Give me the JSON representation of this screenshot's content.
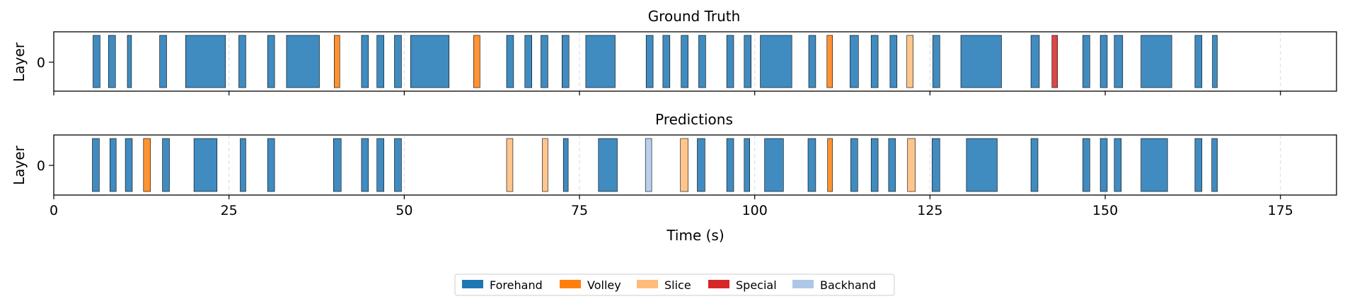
{
  "chart_data": [
    {
      "type": "timeline",
      "title": "Ground Truth",
      "xlabel": "",
      "ylabel": "Layer",
      "ytick": "0",
      "xlim": [
        0,
        183
      ],
      "xticks": [
        0,
        25,
        50,
        75,
        100,
        125,
        150,
        175
      ],
      "show_xtick_labels": false,
      "segments": [
        {
          "start": 5.6,
          "end": 6.6,
          "label": "Forehand"
        },
        {
          "start": 7.8,
          "end": 8.8,
          "label": "Forehand"
        },
        {
          "start": 10.5,
          "end": 11.1,
          "label": "Forehand"
        },
        {
          "start": 15.1,
          "end": 16.1,
          "label": "Forehand"
        },
        {
          "start": 18.8,
          "end": 24.5,
          "label": "Forehand"
        },
        {
          "start": 26.4,
          "end": 27.4,
          "label": "Forehand"
        },
        {
          "start": 30.5,
          "end": 31.5,
          "label": "Forehand"
        },
        {
          "start": 33.2,
          "end": 37.9,
          "label": "Forehand"
        },
        {
          "start": 40.0,
          "end": 40.8,
          "label": "Volley"
        },
        {
          "start": 43.9,
          "end": 44.9,
          "label": "Forehand"
        },
        {
          "start": 46.1,
          "end": 47.1,
          "label": "Forehand"
        },
        {
          "start": 48.6,
          "end": 49.6,
          "label": "Forehand"
        },
        {
          "start": 50.9,
          "end": 56.4,
          "label": "Forehand"
        },
        {
          "start": 59.9,
          "end": 60.8,
          "label": "Volley"
        },
        {
          "start": 64.6,
          "end": 65.6,
          "label": "Forehand"
        },
        {
          "start": 67.2,
          "end": 68.2,
          "label": "Forehand"
        },
        {
          "start": 69.5,
          "end": 70.5,
          "label": "Forehand"
        },
        {
          "start": 72.5,
          "end": 73.5,
          "label": "Forehand"
        },
        {
          "start": 75.9,
          "end": 80.1,
          "label": "Forehand"
        },
        {
          "start": 84.5,
          "end": 85.5,
          "label": "Forehand"
        },
        {
          "start": 86.9,
          "end": 87.9,
          "label": "Forehand"
        },
        {
          "start": 89.5,
          "end": 90.5,
          "label": "Forehand"
        },
        {
          "start": 92.0,
          "end": 93.0,
          "label": "Forehand"
        },
        {
          "start": 96.0,
          "end": 97.0,
          "label": "Forehand"
        },
        {
          "start": 98.5,
          "end": 99.5,
          "label": "Forehand"
        },
        {
          "start": 100.8,
          "end": 105.3,
          "label": "Forehand"
        },
        {
          "start": 107.7,
          "end": 108.7,
          "label": "Forehand"
        },
        {
          "start": 110.3,
          "end": 111.1,
          "label": "Volley"
        },
        {
          "start": 113.6,
          "end": 114.8,
          "label": "Forehand"
        },
        {
          "start": 116.6,
          "end": 117.6,
          "label": "Forehand"
        },
        {
          "start": 119.3,
          "end": 120.3,
          "label": "Forehand"
        },
        {
          "start": 121.7,
          "end": 122.6,
          "label": "Slice"
        },
        {
          "start": 125.4,
          "end": 126.4,
          "label": "Forehand"
        },
        {
          "start": 129.4,
          "end": 135.2,
          "label": "Forehand"
        },
        {
          "start": 139.4,
          "end": 140.6,
          "label": "Forehand"
        },
        {
          "start": 142.4,
          "end": 143.2,
          "label": "Special"
        },
        {
          "start": 146.8,
          "end": 147.8,
          "label": "Forehand"
        },
        {
          "start": 149.3,
          "end": 150.3,
          "label": "Forehand"
        },
        {
          "start": 151.3,
          "end": 152.5,
          "label": "Forehand"
        },
        {
          "start": 155.1,
          "end": 159.5,
          "label": "Forehand"
        },
        {
          "start": 162.8,
          "end": 163.8,
          "label": "Forehand"
        },
        {
          "start": 165.3,
          "end": 166.0,
          "label": "Forehand"
        }
      ]
    },
    {
      "type": "timeline",
      "title": "Predictions",
      "xlabel": "Time (s)",
      "ylabel": "Layer",
      "ytick": "0",
      "xlim": [
        0,
        183
      ],
      "xticks": [
        0,
        25,
        50,
        75,
        100,
        125,
        150,
        175
      ],
      "show_xtick_labels": true,
      "segments": [
        {
          "start": 5.5,
          "end": 6.5,
          "label": "Forehand"
        },
        {
          "start": 8.0,
          "end": 8.9,
          "label": "Forehand"
        },
        {
          "start": 10.2,
          "end": 11.2,
          "label": "Forehand"
        },
        {
          "start": 12.8,
          "end": 13.8,
          "label": "Volley"
        },
        {
          "start": 15.5,
          "end": 16.5,
          "label": "Forehand"
        },
        {
          "start": 20.0,
          "end": 23.3,
          "label": "Forehand"
        },
        {
          "start": 26.6,
          "end": 27.4,
          "label": "Forehand"
        },
        {
          "start": 30.5,
          "end": 31.5,
          "label": "Forehand"
        },
        {
          "start": 39.9,
          "end": 41.0,
          "label": "Forehand"
        },
        {
          "start": 43.9,
          "end": 44.9,
          "label": "Forehand"
        },
        {
          "start": 46.1,
          "end": 47.1,
          "label": "Forehand"
        },
        {
          "start": 48.6,
          "end": 49.6,
          "label": "Forehand"
        },
        {
          "start": 64.6,
          "end": 65.5,
          "label": "Slice"
        },
        {
          "start": 69.7,
          "end": 70.5,
          "label": "Slice"
        },
        {
          "start": 72.7,
          "end": 73.4,
          "label": "Forehand"
        },
        {
          "start": 77.7,
          "end": 80.4,
          "label": "Forehand"
        },
        {
          "start": 84.4,
          "end": 85.3,
          "label": "Backhand"
        },
        {
          "start": 89.4,
          "end": 90.5,
          "label": "Slice"
        },
        {
          "start": 91.8,
          "end": 92.9,
          "label": "Forehand"
        },
        {
          "start": 96.0,
          "end": 97.0,
          "label": "Forehand"
        },
        {
          "start": 98.5,
          "end": 99.3,
          "label": "Forehand"
        },
        {
          "start": 101.4,
          "end": 104.1,
          "label": "Forehand"
        },
        {
          "start": 107.6,
          "end": 108.7,
          "label": "Forehand"
        },
        {
          "start": 110.4,
          "end": 111.1,
          "label": "Volley"
        },
        {
          "start": 113.7,
          "end": 114.7,
          "label": "Forehand"
        },
        {
          "start": 116.6,
          "end": 117.6,
          "label": "Forehand"
        },
        {
          "start": 119.1,
          "end": 120.1,
          "label": "Forehand"
        },
        {
          "start": 121.8,
          "end": 122.9,
          "label": "Slice"
        },
        {
          "start": 125.3,
          "end": 126.4,
          "label": "Forehand"
        },
        {
          "start": 130.2,
          "end": 134.6,
          "label": "Forehand"
        },
        {
          "start": 139.4,
          "end": 140.4,
          "label": "Forehand"
        },
        {
          "start": 146.8,
          "end": 147.8,
          "label": "Forehand"
        },
        {
          "start": 149.3,
          "end": 150.3,
          "label": "Forehand"
        },
        {
          "start": 151.3,
          "end": 152.3,
          "label": "Forehand"
        },
        {
          "start": 155.1,
          "end": 158.9,
          "label": "Forehand"
        },
        {
          "start": 162.8,
          "end": 163.8,
          "label": "Forehand"
        },
        {
          "start": 165.2,
          "end": 166.0,
          "label": "Forehand"
        }
      ]
    }
  ],
  "legend": {
    "placement": "bottom-center",
    "entries": [
      {
        "label": "Forehand",
        "color": "#1f77b4"
      },
      {
        "label": "Volley",
        "color": "#ff7f0e"
      },
      {
        "label": "Slice",
        "color": "#ffbb78"
      },
      {
        "label": "Special",
        "color": "#d62728"
      },
      {
        "label": "Backhand",
        "color": "#aec7e8"
      }
    ]
  }
}
